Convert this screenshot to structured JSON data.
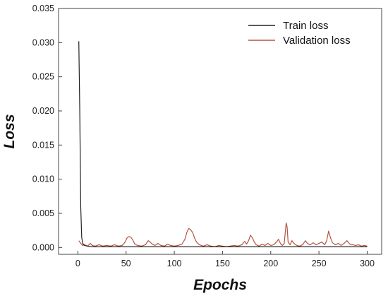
{
  "chart_data": {
    "type": "line",
    "title": "",
    "xlabel": "Epochs",
    "ylabel": "Loss",
    "xlim": [
      -20,
      315
    ],
    "ylim": [
      -0.001,
      0.035
    ],
    "x_ticks": [
      0,
      50,
      100,
      150,
      200,
      250,
      300
    ],
    "x_tick_labels": [
      "0",
      "50",
      "100",
      "150",
      "200",
      "250",
      "300"
    ],
    "y_ticks": [
      0.0,
      0.005,
      0.01,
      0.015,
      0.02,
      0.025,
      0.03,
      0.035
    ],
    "y_tick_labels": [
      "0.000",
      "0.005",
      "0.010",
      "0.015",
      "0.020",
      "0.025",
      "0.030",
      "0.035"
    ],
    "grid": false,
    "legend_position": "top-right",
    "series": [
      {
        "name": "Train loss",
        "color": "#222222",
        "points": [
          [
            1,
            0.0302
          ],
          [
            2,
            0.02
          ],
          [
            3,
            0.006
          ],
          [
            4,
            0.0015
          ],
          [
            5,
            0.0006
          ],
          [
            7,
            0.0003
          ],
          [
            10,
            0.0002
          ],
          [
            15,
            0.0001
          ],
          [
            20,
            0.0001
          ],
          [
            30,
            0.0001
          ],
          [
            50,
            0.0001
          ],
          [
            75,
            0.0001
          ],
          [
            100,
            0.0001
          ],
          [
            125,
            0.0001
          ],
          [
            150,
            0.0001
          ],
          [
            175,
            0.0001
          ],
          [
            200,
            0.0001
          ],
          [
            225,
            0.0001
          ],
          [
            250,
            0.0001
          ],
          [
            275,
            0.0001
          ],
          [
            300,
            0.0001
          ]
        ]
      },
      {
        "name": "Validation loss",
        "color": "#b5533e",
        "points": [
          [
            1,
            0.001
          ],
          [
            3,
            0.0006
          ],
          [
            5,
            0.0003
          ],
          [
            7,
            0.0004
          ],
          [
            10,
            0.0002
          ],
          [
            13,
            0.0006
          ],
          [
            15,
            0.0003
          ],
          [
            18,
            0.0002
          ],
          [
            22,
            0.0004
          ],
          [
            26,
            0.0002
          ],
          [
            30,
            0.0003
          ],
          [
            34,
            0.0002
          ],
          [
            38,
            0.0004
          ],
          [
            42,
            0.0002
          ],
          [
            46,
            0.0003
          ],
          [
            49,
            0.0008
          ],
          [
            51,
            0.0014
          ],
          [
            53,
            0.0016
          ],
          [
            55,
            0.0015
          ],
          [
            57,
            0.0011
          ],
          [
            59,
            0.0005
          ],
          [
            62,
            0.0003
          ],
          [
            66,
            0.0002
          ],
          [
            70,
            0.0004
          ],
          [
            73,
            0.001
          ],
          [
            75,
            0.0008
          ],
          [
            77,
            0.0005
          ],
          [
            80,
            0.0003
          ],
          [
            83,
            0.0006
          ],
          [
            86,
            0.0003
          ],
          [
            90,
            0.0002
          ],
          [
            93,
            0.0005
          ],
          [
            96,
            0.0003
          ],
          [
            100,
            0.0002
          ],
          [
            104,
            0.0003
          ],
          [
            108,
            0.0005
          ],
          [
            111,
            0.0012
          ],
          [
            113,
            0.0022
          ],
          [
            115,
            0.0028
          ],
          [
            117,
            0.0026
          ],
          [
            119,
            0.0022
          ],
          [
            121,
            0.0014
          ],
          [
            123,
            0.0008
          ],
          [
            126,
            0.0004
          ],
          [
            130,
            0.0002
          ],
          [
            134,
            0.0004
          ],
          [
            138,
            0.0002
          ],
          [
            142,
            0.0001
          ],
          [
            146,
            0.0003
          ],
          [
            150,
            0.0002
          ],
          [
            154,
            0.0001
          ],
          [
            158,
            0.0002
          ],
          [
            162,
            0.0003
          ],
          [
            166,
            0.0002
          ],
          [
            170,
            0.0004
          ],
          [
            173,
            0.0009
          ],
          [
            175,
            0.0005
          ],
          [
            177,
            0.001
          ],
          [
            179,
            0.0018
          ],
          [
            181,
            0.0014
          ],
          [
            183,
            0.0008
          ],
          [
            185,
            0.0004
          ],
          [
            188,
            0.0002
          ],
          [
            191,
            0.0005
          ],
          [
            194,
            0.0003
          ],
          [
            197,
            0.0006
          ],
          [
            200,
            0.0003
          ],
          [
            203,
            0.0004
          ],
          [
            206,
            0.0008
          ],
          [
            208,
            0.0012
          ],
          [
            210,
            0.0006
          ],
          [
            212,
            0.0003
          ],
          [
            214,
            0.0006
          ],
          [
            216,
            0.0036
          ],
          [
            217,
            0.003
          ],
          [
            218,
            0.0008
          ],
          [
            220,
            0.0004
          ],
          [
            222,
            0.001
          ],
          [
            224,
            0.0006
          ],
          [
            227,
            0.0003
          ],
          [
            230,
            0.0002
          ],
          [
            233,
            0.0004
          ],
          [
            236,
            0.001
          ],
          [
            238,
            0.0006
          ],
          [
            241,
            0.0004
          ],
          [
            244,
            0.0007
          ],
          [
            247,
            0.0004
          ],
          [
            250,
            0.0006
          ],
          [
            253,
            0.0008
          ],
          [
            256,
            0.0004
          ],
          [
            258,
            0.001
          ],
          [
            260,
            0.0024
          ],
          [
            262,
            0.0014
          ],
          [
            264,
            0.0007
          ],
          [
            267,
            0.0004
          ],
          [
            270,
            0.0006
          ],
          [
            273,
            0.0003
          ],
          [
            276,
            0.0006
          ],
          [
            279,
            0.001
          ],
          [
            282,
            0.0005
          ],
          [
            285,
            0.0004
          ],
          [
            288,
            0.0003
          ],
          [
            291,
            0.0004
          ],
          [
            294,
            0.0002
          ],
          [
            297,
            0.0003
          ],
          [
            300,
            0.0002
          ]
        ]
      }
    ]
  }
}
